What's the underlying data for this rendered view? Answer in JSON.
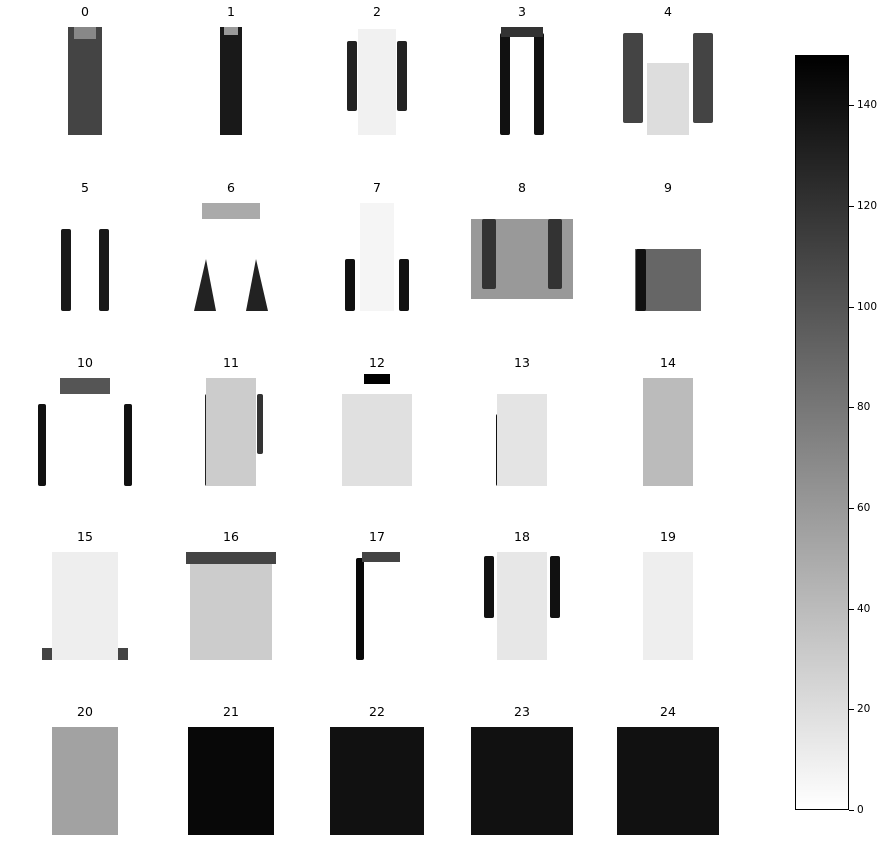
{
  "chart_data": {
    "type": "heatmap",
    "layout": "5x5 grid of grayscale images",
    "colormap": "gray_r",
    "panels": [
      {
        "title": "0",
        "shape": "dress-dark-straight"
      },
      {
        "title": "1",
        "shape": "dress-dark-narrow"
      },
      {
        "title": "2",
        "shape": "light-longsleeve-dark-sleeves"
      },
      {
        "title": "3",
        "shape": "dress-dark-outline"
      },
      {
        "title": "4",
        "shape": "coat-dark-sleeves"
      },
      {
        "title": "5",
        "shape": "two-dark-strips"
      },
      {
        "title": "6",
        "shape": "aline-dark-hem-edges"
      },
      {
        "title": "7",
        "shape": "light-dress-dark-lower-edges"
      },
      {
        "title": "8",
        "shape": "wide-top-dark-pattern"
      },
      {
        "title": "9",
        "shape": "top-dark-lower-band"
      },
      {
        "title": "10",
        "shape": "aline-dark-outline"
      },
      {
        "title": "11",
        "shape": "dress-dark-left-strip"
      },
      {
        "title": "12",
        "shape": "sparse-top-dark-collar"
      },
      {
        "title": "13",
        "shape": "light-top-dark-left-line"
      },
      {
        "title": "14",
        "shape": "dress-mid-gray-left"
      },
      {
        "title": "15",
        "shape": "light-aline-dark-hem"
      },
      {
        "title": "16",
        "shape": "wide-dress-dark-shoulders"
      },
      {
        "title": "17",
        "shape": "straight-dress-dark-left"
      },
      {
        "title": "18",
        "shape": "longsleeve-dark-shoulders"
      },
      {
        "title": "19",
        "shape": "light-dress-dark-left-line"
      },
      {
        "title": "20",
        "shape": "dress-mottled-gray"
      },
      {
        "title": "21",
        "shape": "dress-dark-dotted"
      },
      {
        "title": "22",
        "shape": "dress-dark-fill"
      },
      {
        "title": "23",
        "shape": "dress-dark-fill-sleeves"
      },
      {
        "title": "24",
        "shape": "dress-dark-fill-wide"
      }
    ],
    "colorbar": {
      "vmin": 0,
      "vmax": 150,
      "ticks": [
        0,
        20,
        40,
        60,
        80,
        100,
        120,
        140
      ],
      "tick_labels": [
        "0",
        "20",
        "40",
        "60",
        "80",
        "100",
        "120",
        "140"
      ]
    },
    "axes_visible": false
  }
}
